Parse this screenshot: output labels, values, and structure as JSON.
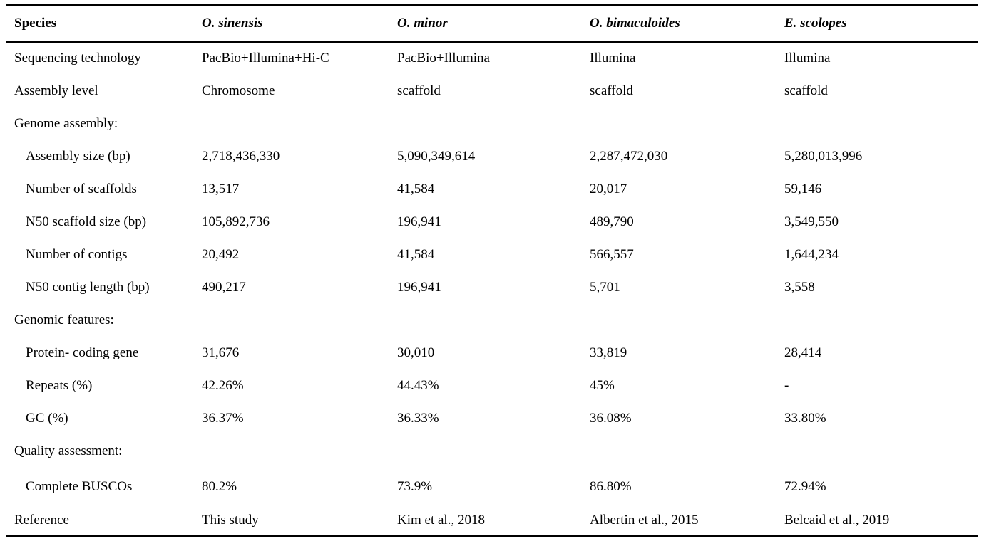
{
  "table": {
    "columns": [
      "Species",
      "O. sinensis",
      "O. minor",
      "O. bimaculoides",
      "E. scolopes"
    ],
    "rows": [
      {
        "label": "Sequencing technology",
        "type": "data",
        "values": [
          "PacBio+Illumina+Hi-C",
          "PacBio+Illumina",
          "Illumina",
          "Illumina"
        ]
      },
      {
        "label": "Assembly level",
        "type": "data",
        "values": [
          "Chromosome",
          "scaffold",
          "scaffold",
          "scaffold"
        ]
      },
      {
        "label": "Genome assembly:",
        "type": "section",
        "values": [
          "",
          "",
          "",
          ""
        ]
      },
      {
        "label": "Assembly size (bp)",
        "type": "sub",
        "values": [
          "2,718,436,330",
          "5,090,349,614",
          "2,287,472,030",
          "5,280,013,996"
        ]
      },
      {
        "label": "Number of scaffolds",
        "type": "sub",
        "values": [
          "13,517",
          "41,584",
          "20,017",
          "59,146"
        ]
      },
      {
        "label": "N50 scaffold size (bp)",
        "type": "sub",
        "values": [
          "105,892,736",
          "196,941",
          "489,790",
          "3,549,550"
        ]
      },
      {
        "label": "Number of contigs",
        "type": "sub",
        "values": [
          "20,492",
          "41,584",
          "566,557",
          "1,644,234"
        ]
      },
      {
        "label": "N50 contig length (bp)",
        "type": "sub",
        "values": [
          "490,217",
          "196,941",
          "5,701",
          "3,558"
        ]
      },
      {
        "label": "Genomic features:",
        "type": "section",
        "values": [
          "",
          "",
          "",
          ""
        ]
      },
      {
        "label": "Protein- coding gene",
        "type": "sub",
        "values": [
          "31,676",
          "30,010",
          "33,819",
          "28,414"
        ]
      },
      {
        "label": "Repeats (%)",
        "type": "sub",
        "values": [
          "42.26%",
          "44.43%",
          "45%",
          "-"
        ]
      },
      {
        "label": "GC (%)",
        "type": "sub",
        "values": [
          "36.37%",
          "36.33%",
          "36.08%",
          "33.80%"
        ]
      },
      {
        "label": "Quality assessment:",
        "type": "section",
        "values": [
          "",
          "",
          "",
          ""
        ]
      },
      {
        "label": "Complete BUSCOs",
        "type": "sub",
        "values": [
          "80.2%",
          "73.9%",
          "86.80%",
          "72.94%"
        ]
      },
      {
        "label": "Reference",
        "type": "data",
        "values": [
          "This study",
          "Kim et al., 2018",
          "Albertin et al., 2015",
          "Belcaid et al., 2019"
        ]
      }
    ]
  }
}
